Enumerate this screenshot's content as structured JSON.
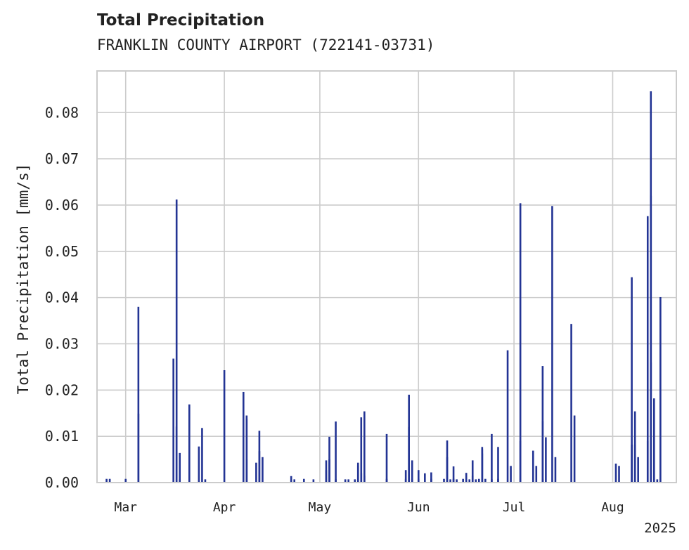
{
  "chart_data": {
    "type": "bar",
    "title": "Total Precipitation",
    "subtitle": "FRANKLIN COUNTY AIRPORT (722141-03731)",
    "ylabel": "Total Precipitation [mm/s]",
    "xlabel": "",
    "ylim": [
      0,
      0.089
    ],
    "xlim": [
      "2025-02-20",
      "2025-08-21"
    ],
    "year_label": "2025",
    "grid": true,
    "bar_color": "#233494",
    "y_ticks": [
      {
        "value": 0.0,
        "label": "0.00"
      },
      {
        "value": 0.01,
        "label": "0.01"
      },
      {
        "value": 0.02,
        "label": "0.02"
      },
      {
        "value": 0.03,
        "label": "0.03"
      },
      {
        "value": 0.04,
        "label": "0.04"
      },
      {
        "value": 0.05,
        "label": "0.05"
      },
      {
        "value": 0.06,
        "label": "0.06"
      },
      {
        "value": 0.07,
        "label": "0.07"
      },
      {
        "value": 0.08,
        "label": "0.08"
      }
    ],
    "x_ticks": [
      {
        "date": "2025-03-01",
        "label": "Mar"
      },
      {
        "date": "2025-04-01",
        "label": "Apr"
      },
      {
        "date": "2025-05-01",
        "label": "May"
      },
      {
        "date": "2025-06-01",
        "label": "Jun"
      },
      {
        "date": "2025-07-01",
        "label": "Jul"
      },
      {
        "date": "2025-08-01",
        "label": "Aug"
      }
    ],
    "points": [
      [
        "2025-02-23",
        0.0008
      ],
      [
        "2025-02-24",
        0.0008
      ],
      [
        "2025-03-01",
        0.0008
      ],
      [
        "2025-03-05",
        0.0149
      ],
      [
        "2025-03-05",
        0.038
      ],
      [
        "2025-03-16",
        0.0268
      ],
      [
        "2025-03-17",
        0.0612
      ],
      [
        "2025-03-17",
        0.0121
      ],
      [
        "2025-03-18",
        0.0064
      ],
      [
        "2025-03-18",
        0.0007
      ],
      [
        "2025-03-21",
        0.0169
      ],
      [
        "2025-03-24",
        0.0078
      ],
      [
        "2025-03-25",
        0.0118
      ],
      [
        "2025-03-26",
        0.0007
      ],
      [
        "2025-04-01",
        0.0243
      ],
      [
        "2025-04-07",
        0.0196
      ],
      [
        "2025-04-08",
        0.0145
      ],
      [
        "2025-04-08",
        0.0138
      ],
      [
        "2025-04-08",
        0.005
      ],
      [
        "2025-04-11",
        0.0043
      ],
      [
        "2025-04-12",
        0.0112
      ],
      [
        "2025-04-12",
        0.0068
      ],
      [
        "2025-04-13",
        0.0055
      ],
      [
        "2025-04-22",
        0.0014
      ],
      [
        "2025-04-23",
        0.0007
      ],
      [
        "2025-04-26",
        0.0008
      ],
      [
        "2025-04-29",
        0.0007
      ],
      [
        "2025-05-03",
        0.0027
      ],
      [
        "2025-05-03",
        0.0048
      ],
      [
        "2025-05-04",
        0.005
      ],
      [
        "2025-05-04",
        0.0099
      ],
      [
        "2025-05-06",
        0.0132
      ],
      [
        "2025-05-06",
        0.0007
      ],
      [
        "2025-05-09",
        0.0007
      ],
      [
        "2025-05-10",
        0.0007
      ],
      [
        "2025-05-12",
        0.0007
      ],
      [
        "2025-05-13",
        0.0037
      ],
      [
        "2025-05-13",
        0.0043
      ],
      [
        "2025-05-14",
        0.0141
      ],
      [
        "2025-05-14",
        0.002
      ],
      [
        "2025-05-15",
        0.0015
      ],
      [
        "2025-05-15",
        0.0154
      ],
      [
        "2025-05-22",
        0.0105
      ],
      [
        "2025-05-22",
        0.0008
      ],
      [
        "2025-05-28",
        0.0008
      ],
      [
        "2025-05-28",
        0.0027
      ],
      [
        "2025-05-29",
        0.019
      ],
      [
        "2025-05-29",
        0.012
      ],
      [
        "2025-05-30",
        0.0048
      ],
      [
        "2025-05-30",
        0.0008
      ],
      [
        "2025-06-01",
        0.0027
      ],
      [
        "2025-06-01",
        0.0008
      ],
      [
        "2025-06-03",
        0.002
      ],
      [
        "2025-06-05",
        0.0022
      ],
      [
        "2025-06-05",
        0.0008
      ],
      [
        "2025-06-09",
        0.0008
      ],
      [
        "2025-06-10",
        0.0055
      ],
      [
        "2025-06-10",
        0.0091
      ],
      [
        "2025-06-11",
        0.0007
      ],
      [
        "2025-06-12",
        0.0008
      ],
      [
        "2025-06-12",
        0.0035
      ],
      [
        "2025-06-13",
        0.0007
      ],
      [
        "2025-06-15",
        0.0008
      ],
      [
        "2025-06-16",
        0.0021
      ],
      [
        "2025-06-17",
        0.0007
      ],
      [
        "2025-06-18",
        0.0015
      ],
      [
        "2025-06-18",
        0.0048
      ],
      [
        "2025-06-19",
        0.0007
      ],
      [
        "2025-06-20",
        0.0008
      ],
      [
        "2025-06-21",
        0.0063
      ],
      [
        "2025-06-21",
        0.0072
      ],
      [
        "2025-06-21",
        0.0077
      ],
      [
        "2025-06-22",
        0.0008
      ],
      [
        "2025-06-24",
        0.0105
      ],
      [
        "2025-06-24",
        0.0007
      ],
      [
        "2025-06-26",
        0.0008
      ],
      [
        "2025-06-26",
        0.0077
      ],
      [
        "2025-06-29",
        0.0286
      ],
      [
        "2025-06-30",
        0.0036
      ],
      [
        "2025-07-03",
        0.009
      ],
      [
        "2025-07-03",
        0.0604
      ],
      [
        "2025-07-07",
        0.0069
      ],
      [
        "2025-07-08",
        0.0036
      ],
      [
        "2025-07-10",
        0.0008
      ],
      [
        "2025-07-10",
        0.0252
      ],
      [
        "2025-07-10",
        0.0133
      ],
      [
        "2025-07-11",
        0.0098
      ],
      [
        "2025-07-13",
        0.0598
      ],
      [
        "2025-07-14",
        0.0055
      ],
      [
        "2025-07-19",
        0.0343
      ],
      [
        "2025-07-20",
        0.0145
      ],
      [
        "2025-08-02",
        0.0041
      ],
      [
        "2025-08-03",
        0.0036
      ],
      [
        "2025-08-07",
        0.0444
      ],
      [
        "2025-08-07",
        0.0082
      ],
      [
        "2025-08-08",
        0.0154
      ],
      [
        "2025-08-08",
        0.0082
      ],
      [
        "2025-08-09",
        0.0055
      ],
      [
        "2025-08-12",
        0.0576
      ],
      [
        "2025-08-12",
        0.009
      ],
      [
        "2025-08-13",
        0.0846
      ],
      [
        "2025-08-13",
        0.062
      ],
      [
        "2025-08-13",
        0.026
      ],
      [
        "2025-08-14",
        0.0182
      ],
      [
        "2025-08-15",
        0.0007
      ],
      [
        "2025-08-16",
        0.0401
      ]
    ]
  }
}
